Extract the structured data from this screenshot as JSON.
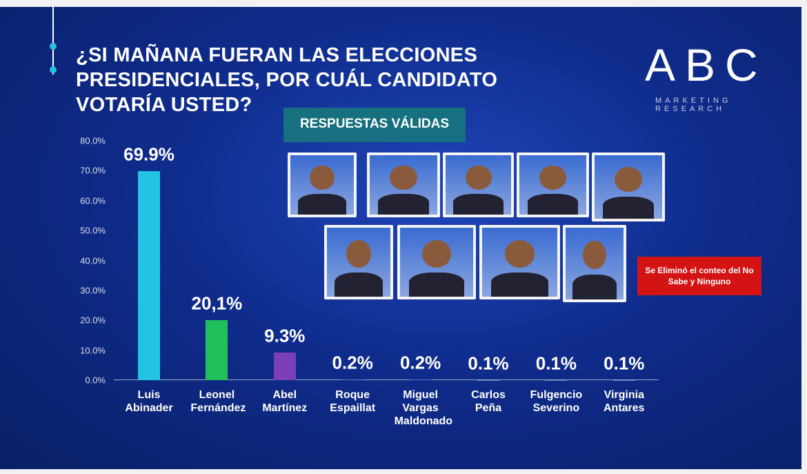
{
  "chart_data": {
    "type": "bar",
    "title": "¿SI MAÑANA FUERAN LAS ELECCIONES PRESIDENCIALES, POR  CUÁL CANDIDATO VOTARÍA USTED?",
    "subtitle": "RESPUESTAS VÁLIDAS",
    "categories": [
      "Luis Abinader",
      "Leonel Fernández",
      "Abel Martínez",
      "Roque Espaillat",
      "Miguel Vargas Maldonado",
      "Carlos Peña",
      "Fulgencio Severino",
      "Virginia Antares"
    ],
    "values": [
      69.9,
      20.1,
      9.3,
      0.2,
      0.2,
      0.1,
      0.1,
      0.1
    ],
    "value_labels": [
      "69.9%",
      "20,1%",
      "9.3%",
      "0.2%",
      "0.2%",
      "0.1%",
      "0.1%",
      "0.1%"
    ],
    "colors": [
      "#22c3e3",
      "#1fbf5a",
      "#7d3fb8",
      "#5a7bd0",
      "#5a7bd0",
      "#5a7bd0",
      "#5a7bd0",
      "#5a7bd0"
    ],
    "ylim": [
      0,
      80
    ],
    "yticks": [
      {
        "value": 0,
        "label": "0.0%"
      },
      {
        "value": 10,
        "label": "10.0%"
      },
      {
        "value": 20,
        "label": "20.0%"
      },
      {
        "value": 30,
        "label": "30.0%"
      },
      {
        "value": 40,
        "label": "40.0%"
      },
      {
        "value": 50,
        "label": "50.0%"
      },
      {
        "value": 60,
        "label": "60.0%"
      },
      {
        "value": 70,
        "label": "70.0%"
      },
      {
        "value": 80,
        "label": "80.0%"
      }
    ],
    "grid": false,
    "note": "Se Eliminó el conteo del No Sabe y Ninguno"
  },
  "logo": {
    "name": "ABC",
    "tagline": "MARKETING RESEARCH"
  }
}
